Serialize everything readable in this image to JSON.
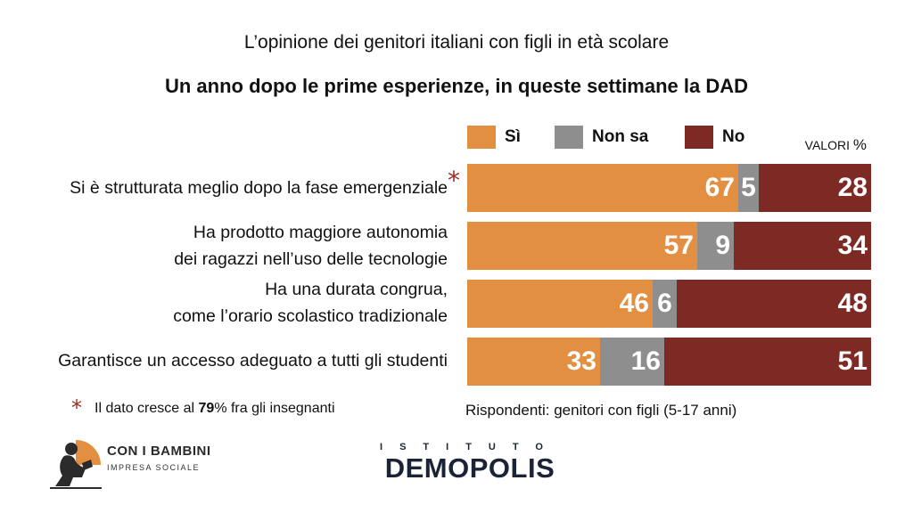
{
  "header": {
    "subtitle": "L’opinione dei genitori italiani con figli in età scolare",
    "title": "Un anno dopo le prime esperienze, in queste settimane la DAD"
  },
  "legend": {
    "si": "Sì",
    "non_sa": "Non sa",
    "no": "No"
  },
  "units": {
    "label": "VALORI",
    "symbol": "%"
  },
  "colors": {
    "si": "#e38f42",
    "non_sa": "#8e8e8e",
    "no": "#7e2a24",
    "asterisk": "#9a2b1d"
  },
  "rows": [
    {
      "line1": "Si è strutturata meglio dopo la fase emergenziale",
      "line2": "",
      "si": "67",
      "non_sa": "5",
      "no": "28"
    },
    {
      "line1": "Ha prodotto maggiore autonomia",
      "line2": "dei ragazzi nell’uso delle tecnologie",
      "si": "57",
      "non_sa": "9",
      "no": "34"
    },
    {
      "line1": "Ha una durata congrua,",
      "line2": "come l’orario scolastico tradizionale",
      "si": "46",
      "non_sa": "6",
      "no": "48"
    },
    {
      "line1": "Garantisce un accesso adeguato a tutti gli studenti",
      "line2": "",
      "si": "33",
      "non_sa": "16",
      "no": "51"
    }
  ],
  "asterisk": "*",
  "note": {
    "prefix": "Il dato cresce al",
    "value": "79",
    "suffix": "% fra gli insegnanti"
  },
  "respondents": "Rispondenti: genitori con figli (5-17 anni)",
  "logos": {
    "left_name": "CON I BAMBINI",
    "left_sub": "IMPRESA SOCIALE",
    "right_top": "ISTITUTO",
    "right_main": "DEMOPOLIS"
  },
  "chart_data": {
    "type": "bar",
    "stacked": true,
    "orientation": "horizontal",
    "title": "Un anno dopo le prime esperienze, in queste settimane la DAD",
    "subtitle": "L’opinione dei genitori italiani con figli in età scolare",
    "unit": "VALORI %",
    "categories": [
      "Si è strutturata meglio dopo la fase emergenziale",
      "Ha prodotto maggiore autonomia dei ragazzi nell’uso delle tecnologie",
      "Ha una durata congrua, come l’orario scolastico tradizionale",
      "Garantisce un accesso adeguato a tutti gli studenti"
    ],
    "series": [
      {
        "name": "Sì",
        "values": [
          67,
          57,
          46,
          33
        ]
      },
      {
        "name": "Non sa",
        "values": [
          5,
          9,
          6,
          16
        ]
      },
      {
        "name": "No",
        "values": [
          28,
          34,
          48,
          51
        ]
      }
    ],
    "xlim": [
      0,
      100
    ],
    "legend_position": "top-right",
    "grid": false
  }
}
